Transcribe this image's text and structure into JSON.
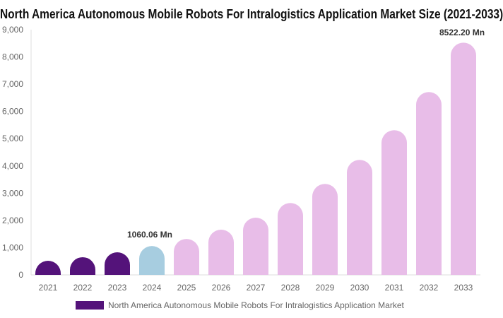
{
  "chart_data": {
    "type": "bar",
    "title": "North America Autonomous Mobile Robots For Intralogistics Application Market Size (2021-2033)",
    "categories": [
      "2021",
      "2022",
      "2023",
      "2024",
      "2025",
      "2026",
      "2027",
      "2028",
      "2029",
      "2030",
      "2031",
      "2032",
      "2033"
    ],
    "series": [
      {
        "name": "North America Autonomous Mobile Robots For Intralogistics Application Market",
        "values": [
          520,
          650,
          830,
          1060.06,
          1320,
          1660,
          2100,
          2640,
          3340,
          4220,
          5310,
          6710,
          8522.2
        ]
      }
    ],
    "data_labels": [
      {
        "category": "2024",
        "text": "1060.06 Mn"
      },
      {
        "category": "2033",
        "text": "8522.20 Mn"
      }
    ],
    "yticks": [
      "0",
      "1,000",
      "2,000",
      "3,000",
      "4,000",
      "5,000",
      "6,000",
      "7,000",
      "8,000",
      "9,000"
    ],
    "ylim": [
      0,
      9000
    ],
    "xlabel": "",
    "ylabel": "",
    "grid": false,
    "legend_position": "bottom",
    "colors": {
      "historical": "#54137a",
      "base_year": "#a7cde0",
      "forecast": "#e8bde8"
    }
  }
}
